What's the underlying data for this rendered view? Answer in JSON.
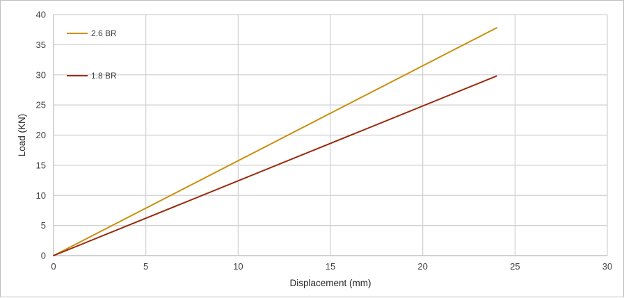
{
  "chart_data": {
    "type": "line",
    "xlabel": "Displacement (mm)",
    "ylabel": "Load (KN)",
    "xlim": [
      0,
      30
    ],
    "ylim": [
      0,
      40
    ],
    "xticks": [
      0,
      5,
      10,
      15,
      20,
      25,
      30
    ],
    "yticks": [
      0,
      5,
      10,
      15,
      20,
      25,
      30,
      35,
      40
    ],
    "grid": true,
    "legend_position": "top-left",
    "series": [
      {
        "name": "2.6 BR",
        "color": "#C9900C",
        "x": [
          0,
          24
        ],
        "y": [
          0,
          37.8
        ]
      },
      {
        "name": "1.8 BR",
        "color": "#9B2A0C",
        "x": [
          0,
          24
        ],
        "y": [
          0,
          29.8
        ]
      }
    ]
  }
}
